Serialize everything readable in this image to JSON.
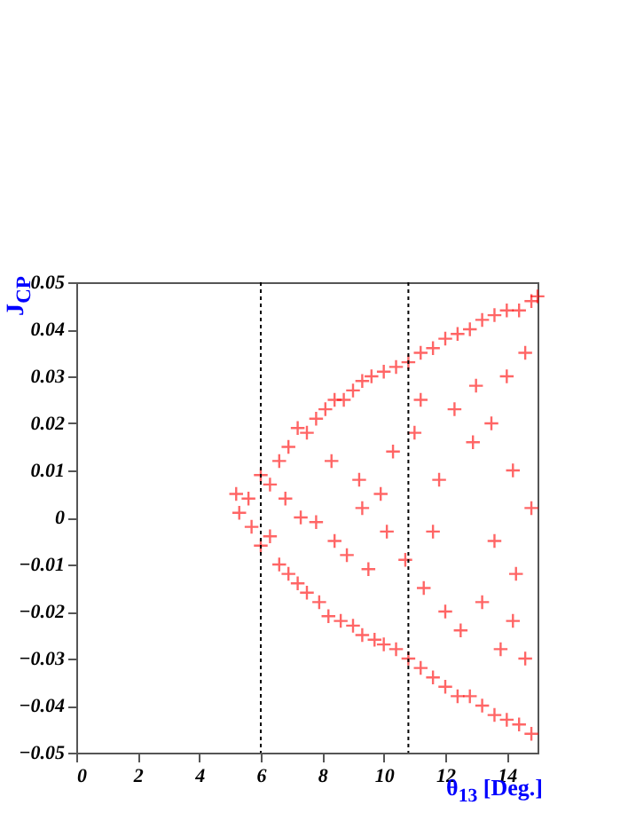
{
  "chart_data": {
    "type": "scatter",
    "xlabel": "θ$_{13}$ [Deg.]",
    "ylabel": "J$_{CP}$",
    "xlim": [
      0,
      15
    ],
    "ylim": [
      -0.05,
      0.05
    ],
    "xticks": [
      0,
      2,
      4,
      6,
      8,
      10,
      12,
      14
    ],
    "yticks": [
      -0.05,
      -0.04,
      -0.03,
      -0.02,
      -0.01,
      0,
      0.01,
      0.02,
      0.03,
      0.04,
      0.05
    ],
    "grid": false,
    "marker": "cross",
    "x": [
      5.2,
      5.6,
      6.0,
      6.3,
      6.6,
      6.9,
      7.2,
      7.5,
      7.8,
      8.1,
      8.4,
      8.7,
      9.0,
      9.3,
      9.6,
      10.0,
      10.4,
      10.8,
      11.2,
      11.6,
      12.0,
      12.4,
      12.8,
      13.2,
      13.6,
      14.0,
      14.4,
      14.8,
      15.0,
      5.3,
      5.7,
      6.0,
      6.3,
      6.6,
      6.9,
      7.2,
      7.5,
      7.9,
      8.2,
      8.6,
      9.0,
      9.3,
      9.7,
      10.0,
      10.4,
      10.8,
      11.2,
      11.6,
      12.0,
      12.4,
      12.8,
      13.2,
      13.6,
      14.0,
      14.4,
      14.8,
      6.8,
      7.3,
      7.8,
      8.3,
      8.4,
      8.8,
      9.2,
      9.3,
      9.5,
      9.9,
      10.1,
      10.3,
      10.7,
      11.0,
      11.2,
      11.3,
      11.8,
      12.0,
      12.3,
      12.5,
      13.0,
      13.2,
      13.5,
      13.8,
      14.0,
      14.2,
      14.3,
      14.6,
      14.6,
      14.8,
      13.6,
      12.9,
      11.6,
      14.2
    ],
    "series": [
      {
        "color": "#ff0000",
        "values": [
          0.005,
          0.004,
          0.009,
          0.007,
          0.012,
          0.015,
          0.019,
          0.018,
          0.021,
          0.023,
          0.025,
          0.025,
          0.027,
          0.029,
          0.03,
          0.031,
          0.032,
          0.033,
          0.035,
          0.036,
          0.038,
          0.039,
          0.04,
          0.042,
          0.043,
          0.044,
          0.044,
          0.046,
          0.047,
          0.001,
          -0.002,
          -0.006,
          -0.004,
          -0.01,
          -0.012,
          -0.014,
          -0.016,
          -0.018,
          -0.021,
          -0.022,
          -0.023,
          -0.025,
          -0.026,
          -0.027,
          -0.028,
          -0.03,
          -0.032,
          -0.034,
          -0.036,
          -0.038,
          -0.038,
          -0.04,
          -0.042,
          -0.043,
          -0.044,
          -0.046,
          0.004,
          0.0,
          -0.001,
          0.012,
          -0.005,
          -0.008,
          0.008,
          0.002,
          -0.011,
          0.005,
          -0.003,
          0.014,
          -0.009,
          0.018,
          0.025,
          -0.015,
          0.008,
          -0.02,
          0.023,
          -0.024,
          0.028,
          -0.018,
          0.02,
          -0.028,
          0.03,
          0.01,
          -0.012,
          0.035,
          -0.03,
          0.002,
          -0.005,
          0.016,
          -0.003,
          -0.022
        ]
      }
    ],
    "ref_lines": [
      {
        "axis": "x",
        "value": 6,
        "color": "#000000",
        "line_style": "dotted"
      },
      {
        "axis": "x",
        "value": 10.8,
        "color": "#000000",
        "line_style": "dotted"
      }
    ]
  }
}
